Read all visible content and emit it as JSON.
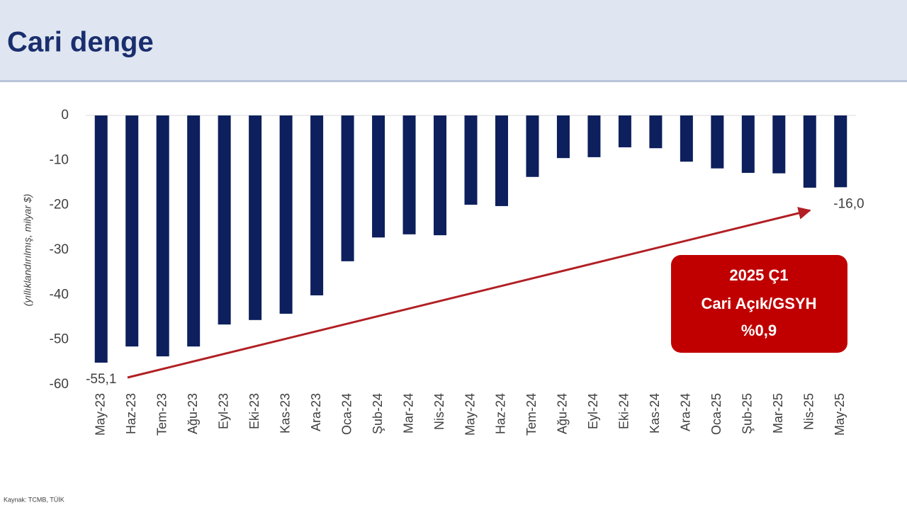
{
  "header": {
    "title": "Cari denge"
  },
  "chart_data": {
    "type": "bar",
    "y_label": "(yıllıklandırılmış, milyar $)",
    "categories": [
      "May-23",
      "Haz-23",
      "Tem-23",
      "Ağu-23",
      "Eyl-23",
      "Eki-23",
      "Kas-23",
      "Ara-23",
      "Oca-24",
      "Şub-24",
      "Mar-24",
      "Nis-24",
      "May-24",
      "Haz-24",
      "Tem-24",
      "Ağu-24",
      "Eyl-24",
      "Eki-24",
      "Kas-24",
      "Ara-24",
      "Oca-25",
      "Şub-25",
      "Mar-25",
      "Nis-25",
      "May-25"
    ],
    "values": [
      -55.1,
      -51.5,
      -53.7,
      -51.5,
      -46.6,
      -45.6,
      -44.2,
      -40.1,
      -32.5,
      -27.2,
      -26.5,
      -26.7,
      -19.9,
      -20.2,
      -13.7,
      -9.5,
      -9.3,
      -7.1,
      -7.3,
      -10.3,
      -11.8,
      -12.8,
      -12.9,
      -16.1,
      -16.0
    ],
    "value_labels": [
      "-55,1",
      null,
      null,
      null,
      null,
      null,
      null,
      null,
      null,
      null,
      null,
      null,
      null,
      null,
      null,
      null,
      null,
      null,
      null,
      null,
      null,
      null,
      null,
      null,
      "-16,0"
    ],
    "color": "#0d1f5c",
    "ylim": [
      -60,
      0
    ],
    "yticks": [
      0,
      -10,
      -20,
      -30,
      -40,
      -50,
      -60
    ],
    "grid": false,
    "annotations": [
      "2025 Ç1",
      "Cari Açık/GSYH",
      "%0,9"
    ]
  },
  "footer": {
    "source": "Kaynak: TCMB, TÜİK"
  }
}
